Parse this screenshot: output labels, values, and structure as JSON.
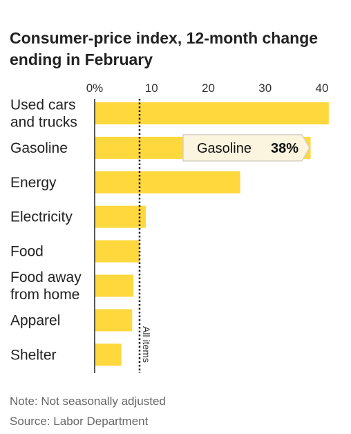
{
  "chart_data": {
    "type": "bar",
    "orientation": "horizontal",
    "title": "Consumer-price index, 12-month change ending in February",
    "categories": [
      [
        "Used cars",
        "and trucks"
      ],
      [
        "Gasoline"
      ],
      [
        "Energy"
      ],
      [
        "Electricity"
      ],
      [
        "Food"
      ],
      [
        "Food away",
        "from home"
      ],
      [
        "Apparel"
      ],
      [
        "Shelter"
      ]
    ],
    "values": [
      41.2,
      38.0,
      25.6,
      9.0,
      7.9,
      6.8,
      6.6,
      4.7
    ],
    "xlim": [
      0,
      42
    ],
    "ticks": [
      0,
      10,
      20,
      30,
      40
    ],
    "tick_labels": [
      "0%",
      "10",
      "20",
      "30",
      "40"
    ],
    "reference_line": {
      "value": 7.9,
      "label": "All items"
    },
    "tooltip": {
      "category": "Gasoline",
      "label": "Gasoline",
      "value_text": "38%"
    },
    "bar_color": "#FFD83E",
    "grid": false
  },
  "notes": {
    "note": "Note: Not seasonally adjusted",
    "source": "Source: Labor Department"
  }
}
